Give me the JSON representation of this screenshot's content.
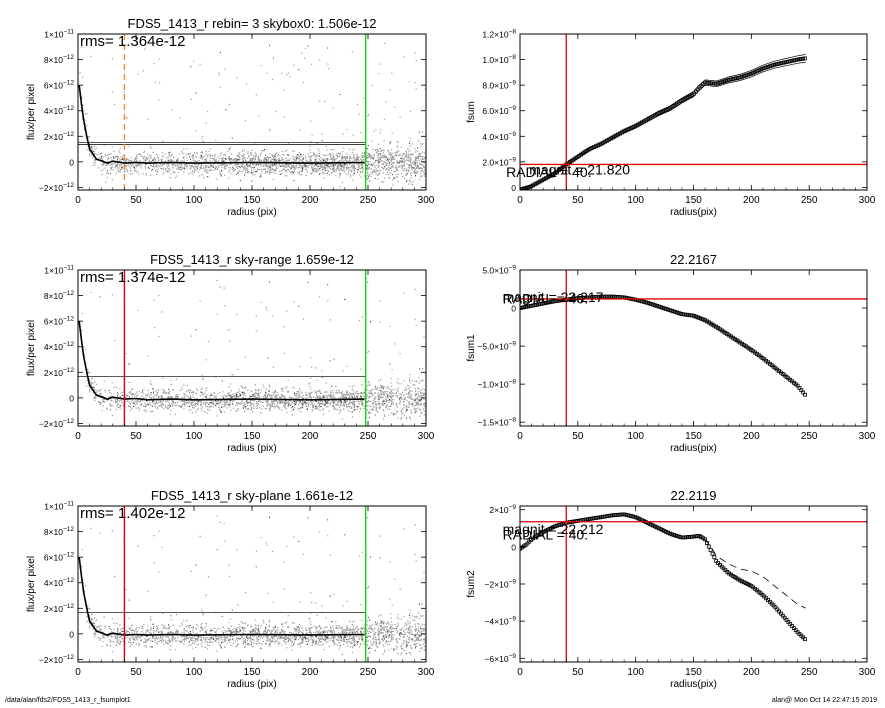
{
  "footer": {
    "path": "/data/alan/fds2/FDS5_1413_r_fsumplot1",
    "stamp": "alan@  Mon Oct 14 22:47:15 2019"
  },
  "colors": {
    "scatter": "#a0a0a0",
    "red": "#e00000",
    "green": "#00dd00",
    "orange": "#f28c28",
    "profile": "#000000"
  },
  "chart_data": [
    {
      "type": "scatter",
      "panel": "left-1",
      "title": "FDS5_1413_r rebin= 3    skybox0:  1.506e-12",
      "annotation": "rms= 1.364e-12",
      "xlabel": "radius (pix)",
      "ylabel": "flux/per pixel",
      "xlim": [
        0,
        300
      ],
      "ylim": [
        -2.2e-12,
        1e-11
      ],
      "xticks": [
        "0",
        "50",
        "100",
        "150",
        "200",
        "250",
        "300"
      ],
      "yticks": [
        {
          "value": -2e-12,
          "base": "−2×10",
          "exp": "−12"
        },
        {
          "value": 0,
          "base": "0",
          "exp": ""
        },
        {
          "value": 2e-12,
          "base": "2×10",
          "exp": "−12"
        },
        {
          "value": 4e-12,
          "base": "4×10",
          "exp": "−12"
        },
        {
          "value": 6e-12,
          "base": "6×10",
          "exp": "−12"
        },
        {
          "value": 8e-12,
          "base": "8×10",
          "exp": "−12"
        },
        {
          "value": 1e-11,
          "base": "1×10",
          "exp": "−11"
        }
      ],
      "vlines": [
        {
          "x": 40,
          "color": "orange",
          "dashed": true
        },
        {
          "x": 248,
          "color": "green",
          "dashed": false
        }
      ],
      "hlines": [
        1.364e-12,
        1.506e-12
      ],
      "profile": [
        [
          1,
          6e-12
        ],
        [
          3,
          4.5e-12
        ],
        [
          5,
          3.2e-12
        ],
        [
          8,
          1.8e-12
        ],
        [
          10,
          1e-12
        ],
        [
          13,
          6e-13
        ],
        [
          16,
          2e-13
        ],
        [
          20,
          1e-13
        ],
        [
          25,
          -1e-13
        ],
        [
          30,
          5e-14
        ],
        [
          40,
          -1e-13
        ],
        [
          50,
          -5e-14
        ],
        [
          60,
          -1e-13
        ],
        [
          80,
          -5e-14
        ],
        [
          100,
          -1e-13
        ],
        [
          150,
          -5e-14
        ],
        [
          200,
          -1e-13
        ],
        [
          247,
          -5e-14
        ]
      ]
    },
    {
      "type": "scatter",
      "panel": "left-2",
      "title": "FDS5_1413_r sky-range  1.659e-12",
      "annotation": "rms= 1.374e-12",
      "xlabel": "radius (pix)",
      "ylabel": "flux/per pixel",
      "xlim": [
        0,
        300
      ],
      "ylim": [
        -2.2e-12,
        1e-11
      ],
      "xticks": [
        "0",
        "50",
        "100",
        "150",
        "200",
        "250",
        "300"
      ],
      "yticks": [
        {
          "value": -2e-12,
          "base": "−2×10",
          "exp": "−12"
        },
        {
          "value": 0,
          "base": "0",
          "exp": ""
        },
        {
          "value": 2e-12,
          "base": "2×10",
          "exp": "−12"
        },
        {
          "value": 4e-12,
          "base": "4×10",
          "exp": "−12"
        },
        {
          "value": 6e-12,
          "base": "6×10",
          "exp": "−12"
        },
        {
          "value": 8e-12,
          "base": "8×10",
          "exp": "−12"
        },
        {
          "value": 1e-11,
          "base": "1×10",
          "exp": "−11"
        }
      ],
      "vlines": [
        {
          "x": 40,
          "color": "red",
          "dashed": false
        },
        {
          "x": 248,
          "color": "green",
          "dashed": false
        }
      ],
      "hlines": [
        1.659e-12
      ],
      "profile": [
        [
          1,
          6e-12
        ],
        [
          3,
          4.5e-12
        ],
        [
          5,
          3.2e-12
        ],
        [
          8,
          1.8e-12
        ],
        [
          10,
          1e-12
        ],
        [
          13,
          6e-13
        ],
        [
          16,
          2e-13
        ],
        [
          20,
          1e-13
        ],
        [
          25,
          -1e-13
        ],
        [
          30,
          5e-14
        ],
        [
          40,
          -1e-13
        ],
        [
          50,
          -5e-14
        ],
        [
          60,
          -1.5e-13
        ],
        [
          80,
          -1e-13
        ],
        [
          100,
          -1.5e-13
        ],
        [
          150,
          -1e-13
        ],
        [
          200,
          -1.5e-13
        ],
        [
          247,
          -1e-13
        ]
      ]
    },
    {
      "type": "scatter",
      "panel": "left-3",
      "title": "FDS5_1413_r sky-plane  1.661e-12",
      "annotation": "rms= 1.402e-12",
      "xlabel": "radius (pix)",
      "ylabel": "flux/per pixel",
      "xlim": [
        0,
        300
      ],
      "ylim": [
        -2.2e-12,
        1e-11
      ],
      "xticks": [
        "0",
        "50",
        "100",
        "150",
        "200",
        "250",
        "300"
      ],
      "yticks": [
        {
          "value": -2e-12,
          "base": "−2×10",
          "exp": "−12"
        },
        {
          "value": 0,
          "base": "0",
          "exp": ""
        },
        {
          "value": 2e-12,
          "base": "2×10",
          "exp": "−12"
        },
        {
          "value": 4e-12,
          "base": "4×10",
          "exp": "−12"
        },
        {
          "value": 6e-12,
          "base": "6×10",
          "exp": "−12"
        },
        {
          "value": 8e-12,
          "base": "8×10",
          "exp": "−12"
        },
        {
          "value": 1e-11,
          "base": "1×10",
          "exp": "−11"
        }
      ],
      "vlines": [
        {
          "x": 40,
          "color": "red",
          "dashed": false
        },
        {
          "x": 248,
          "color": "green",
          "dashed": false
        }
      ],
      "hlines": [
        1.661e-12
      ],
      "profile": [
        [
          1,
          6e-12
        ],
        [
          3,
          4.5e-12
        ],
        [
          5,
          3.2e-12
        ],
        [
          8,
          1.8e-12
        ],
        [
          10,
          1e-12
        ],
        [
          13,
          6e-13
        ],
        [
          16,
          2e-13
        ],
        [
          20,
          1e-13
        ],
        [
          25,
          -1e-13
        ],
        [
          30,
          5e-14
        ],
        [
          40,
          -1e-13
        ],
        [
          50,
          -5e-14
        ],
        [
          60,
          -1e-13
        ],
        [
          80,
          -5e-14
        ],
        [
          100,
          -1e-13
        ],
        [
          150,
          -5e-14
        ],
        [
          200,
          -8e-14
        ],
        [
          247,
          -5e-14
        ]
      ]
    },
    {
      "type": "line",
      "panel": "right-1",
      "title": "",
      "xlabel": "radius(pix)",
      "ylabel": "fsum",
      "xlim": [
        0,
        300
      ],
      "ylim": [
        -2e-10,
        1.2e-08
      ],
      "xticks": [
        "0",
        "50",
        "100",
        "150",
        "200",
        "250",
        "300"
      ],
      "yticks": [
        {
          "value": 0,
          "base": "0",
          "exp": ""
        },
        {
          "value": 2e-09,
          "base": "2.0×10",
          "exp": "−9"
        },
        {
          "value": 4e-09,
          "base": "4.0×10",
          "exp": "−9"
        },
        {
          "value": 6e-09,
          "base": "6.0×10",
          "exp": "−9"
        },
        {
          "value": 8e-09,
          "base": "8.0×10",
          "exp": "−9"
        },
        {
          "value": 1e-08,
          "base": "1.0×10",
          "exp": "−8"
        },
        {
          "value": 1.2e-08,
          "base": "1.2×10",
          "exp": "−8"
        }
      ],
      "vline": 40,
      "hline": 1.8e-09,
      "labels": [
        {
          "text": "magnit = 21.820",
          "x": 8,
          "y": 1e-09
        },
        {
          "text": "RADIAL = 40.",
          "x": -12,
          "y": 8e-10
        }
      ],
      "series": [
        {
          "style": "markers",
          "points": [
            [
              0,
              -1.5e-10
            ],
            [
              5,
              -5e-11
            ],
            [
              10,
              1e-10
            ],
            [
              20,
              6e-10
            ],
            [
              30,
              1.1e-09
            ],
            [
              40,
              1.8e-09
            ],
            [
              50,
              2.4e-09
            ],
            [
              60,
              3e-09
            ],
            [
              70,
              3.4e-09
            ],
            [
              80,
              3.9e-09
            ],
            [
              90,
              4.4e-09
            ],
            [
              100,
              4.8e-09
            ],
            [
              110,
              5.3e-09
            ],
            [
              120,
              5.8e-09
            ],
            [
              130,
              6.2e-09
            ],
            [
              140,
              6.8e-09
            ],
            [
              150,
              7.3e-09
            ],
            [
              155,
              7.8e-09
            ],
            [
              160,
              8.2e-09
            ],
            [
              170,
              8.1e-09
            ],
            [
              180,
              8.4e-09
            ],
            [
              190,
              8.6e-09
            ],
            [
              200,
              8.9e-09
            ],
            [
              210,
              9.3e-09
            ],
            [
              220,
              9.6e-09
            ],
            [
              230,
              9.8e-09
            ],
            [
              240,
              1e-08
            ],
            [
              247,
              1.01e-08
            ]
          ]
        },
        {
          "style": "band-upper",
          "offset": 2.5e-10
        },
        {
          "style": "band-lower",
          "offset": -2.5e-10
        }
      ]
    },
    {
      "type": "line",
      "panel": "right-2",
      "title": "22.2167",
      "xlabel": "radius(pix)",
      "ylabel": "fsum1",
      "xlim": [
        0,
        300
      ],
      "ylim": [
        -1.55e-08,
        5e-09
      ],
      "xticks": [
        "0",
        "50",
        "100",
        "150",
        "200",
        "250",
        "300"
      ],
      "yticks": [
        {
          "value": -1.5e-08,
          "base": "−1.5×10",
          "exp": "−8"
        },
        {
          "value": -1e-08,
          "base": "−1.0×10",
          "exp": "−8"
        },
        {
          "value": -5e-09,
          "base": "−5.0×10",
          "exp": "−9"
        },
        {
          "value": 0,
          "base": "0",
          "exp": ""
        },
        {
          "value": 5e-09,
          "base": "5.0×10",
          "exp": "−9"
        }
      ],
      "vline": 40,
      "hline": 1.2e-09,
      "labels": [
        {
          "text": "magnit = 22.217",
          "x": -15,
          "y": 8e-10
        },
        {
          "text": "RADIAL = 40.",
          "x": -15,
          "y": 6e-10
        }
      ],
      "series": [
        {
          "style": "markers",
          "points": [
            [
              0,
              0
            ],
            [
              10,
              3e-10
            ],
            [
              20,
              6e-10
            ],
            [
              30,
              9e-10
            ],
            [
              40,
              1.1e-09
            ],
            [
              50,
              1.3e-09
            ],
            [
              60,
              1.4e-09
            ],
            [
              70,
              1.5e-09
            ],
            [
              80,
              1.5e-09
            ],
            [
              90,
              1.4e-09
            ],
            [
              100,
              1.1e-09
            ],
            [
              110,
              7e-10
            ],
            [
              120,
              2e-10
            ],
            [
              130,
              -3e-10
            ],
            [
              140,
              -8e-10
            ],
            [
              150,
              -1e-09
            ],
            [
              160,
              -1.6e-09
            ],
            [
              170,
              -2.5e-09
            ],
            [
              180,
              -3.5e-09
            ],
            [
              190,
              -4.5e-09
            ],
            [
              200,
              -5.5e-09
            ],
            [
              210,
              -6.6e-09
            ],
            [
              220,
              -7.8e-09
            ],
            [
              230,
              -9e-09
            ],
            [
              240,
              -1.02e-08
            ],
            [
              247,
              -1.15e-08
            ]
          ]
        }
      ]
    },
    {
      "type": "line",
      "panel": "right-3",
      "title": "22.2119",
      "xlabel": "radius(pix)",
      "ylabel": "fsum2",
      "xlim": [
        0,
        300
      ],
      "ylim": [
        -6.2e-09,
        2.2e-09
      ],
      "xticks": [
        "0",
        "50",
        "100",
        "150",
        "200",
        "250",
        "300"
      ],
      "yticks": [
        {
          "value": -6e-09,
          "base": "−6×10",
          "exp": "−9"
        },
        {
          "value": -4e-09,
          "base": "−4×10",
          "exp": "−9"
        },
        {
          "value": -2e-09,
          "base": "−2×10",
          "exp": "−9"
        },
        {
          "value": 0,
          "base": "0",
          "exp": ""
        },
        {
          "value": 2e-09,
          "base": "2×10",
          "exp": "−9"
        }
      ],
      "vline": 40,
      "hline": 1.35e-09,
      "labels": [
        {
          "text": "magnit = 22.212",
          "x": -15,
          "y": 7e-10
        },
        {
          "text": "RADIAL = 40.",
          "x": -15,
          "y": 4e-10
        }
      ],
      "series": [
        {
          "style": "markers",
          "points": [
            [
              0,
              -1e-10
            ],
            [
              5,
              1e-10
            ],
            [
              10,
              4e-10
            ],
            [
              20,
              8e-10
            ],
            [
              30,
              1.1e-09
            ],
            [
              40,
              1.3e-09
            ],
            [
              50,
              1.4e-09
            ],
            [
              60,
              1.5e-09
            ],
            [
              70,
              1.6e-09
            ],
            [
              80,
              1.7e-09
            ],
            [
              90,
              1.75e-09
            ],
            [
              100,
              1.6e-09
            ],
            [
              110,
              1.3e-09
            ],
            [
              120,
              1e-09
            ],
            [
              130,
              7e-10
            ],
            [
              140,
              5e-10
            ],
            [
              150,
              5.5e-10
            ],
            [
              155,
              6e-10
            ],
            [
              160,
              4e-10
            ],
            [
              165,
              -2e-10
            ],
            [
              170,
              -8e-10
            ],
            [
              180,
              -1.4e-09
            ],
            [
              190,
              -1.8e-09
            ],
            [
              200,
              -2.1e-09
            ],
            [
              210,
              -2.6e-09
            ],
            [
              220,
              -3.2e-09
            ],
            [
              230,
              -3.9e-09
            ],
            [
              240,
              -4.6e-09
            ],
            [
              247,
              -5e-09
            ]
          ]
        },
        {
          "style": "dashed",
          "points": [
            [
              150,
              5.5e-10
            ],
            [
              160,
              4e-10
            ],
            [
              165,
              0.0
            ],
            [
              170,
              -5e-10
            ],
            [
              180,
              -9e-10
            ],
            [
              190,
              -1.2e-09
            ],
            [
              200,
              -1.3e-09
            ],
            [
              210,
              -1.6e-09
            ],
            [
              220,
              -2.1e-09
            ],
            [
              230,
              -2.6e-09
            ],
            [
              240,
              -3.1e-09
            ],
            [
              247,
              -3.3e-09
            ]
          ]
        }
      ]
    }
  ]
}
